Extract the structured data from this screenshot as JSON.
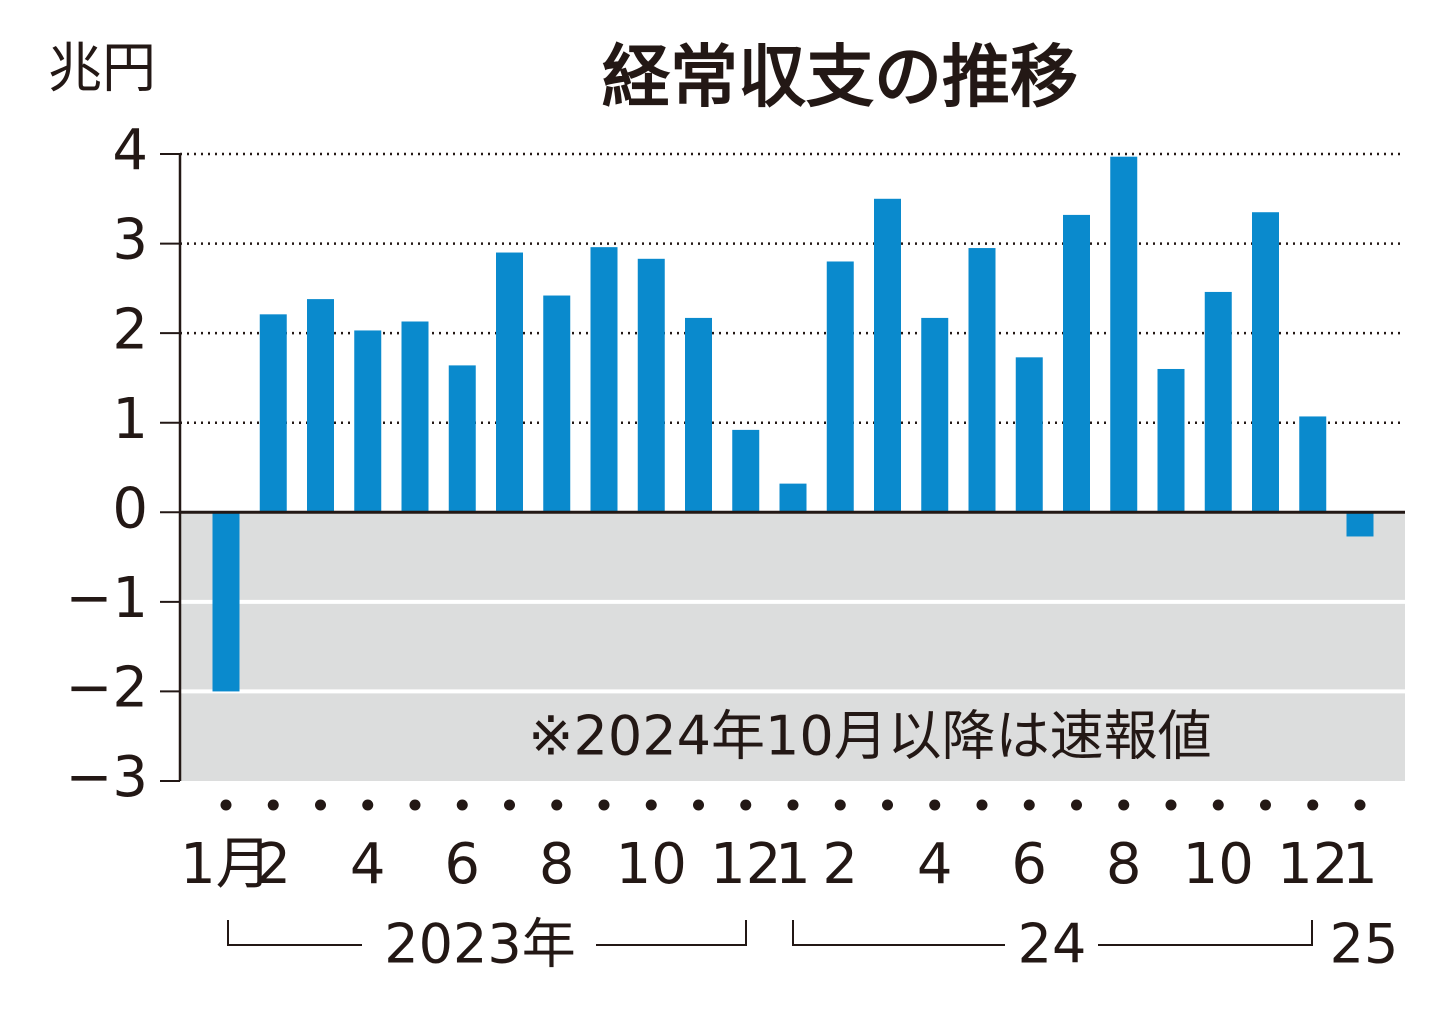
{
  "chart_data": {
    "type": "bar",
    "title": "経常収支の推移",
    "y_unit": "兆円",
    "categories": [
      "1月",
      "2",
      null,
      "4",
      null,
      "6",
      null,
      "8",
      null,
      "10",
      null,
      "12",
      "1",
      "2",
      null,
      "4",
      null,
      "6",
      null,
      "8",
      null,
      "10",
      null,
      "12",
      "1"
    ],
    "values": [
      -2.0,
      2.21,
      2.38,
      2.03,
      2.13,
      1.64,
      2.9,
      2.42,
      2.96,
      2.83,
      2.17,
      0.92,
      0.32,
      2.8,
      3.5,
      2.17,
      2.95,
      1.73,
      3.32,
      3.97,
      1.6,
      2.46,
      3.35,
      1.07,
      -0.27
    ],
    "color": "#0a8acd",
    "ylim": [
      -3,
      4
    ],
    "yticks": [
      {
        "value": -3,
        "label": "−3"
      },
      {
        "value": -2,
        "label": "−2"
      },
      {
        "value": -1,
        "label": "−1"
      },
      0,
      1,
      2,
      3,
      4
    ],
    "grid": true,
    "groups": [
      "2023年",
      "24",
      "25"
    ],
    "annotation": "※2024年10月以降は速報値"
  }
}
